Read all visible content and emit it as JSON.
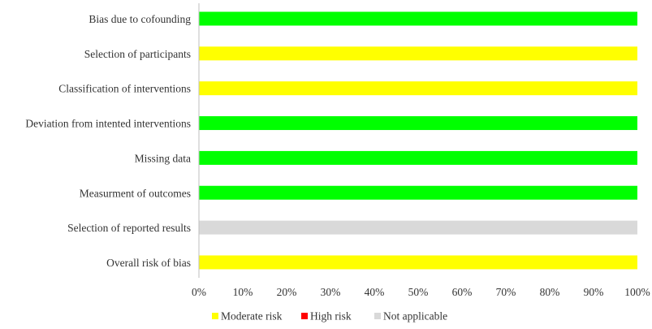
{
  "chart_data": {
    "type": "bar",
    "orientation": "horizontal",
    "stacked": true,
    "title": "",
    "xlabel": "",
    "ylabel": "",
    "xlim": [
      0,
      100
    ],
    "x_unit": "%",
    "grid": false,
    "legend_position": "bottom",
    "categories": [
      "Bias due to cofounding",
      "Selection of participants",
      "Classification of interventions",
      "Deviation from intented interventions",
      "Missing data",
      "Measurment of outcomes",
      "Selection of reported results",
      "Overall risk of bias"
    ],
    "x_ticks": [
      "0%",
      "10%",
      "20%",
      "30%",
      "40%",
      "50%",
      "60%",
      "70%",
      "80%",
      "90%",
      "100%"
    ],
    "tick_values": [
      0,
      10,
      20,
      30,
      40,
      50,
      60,
      70,
      80,
      90,
      100
    ],
    "series": [
      {
        "key": "low",
        "name": "",
        "color": "#00ff00",
        "values": [
          100,
          0,
          0,
          100,
          100,
          100,
          0,
          0
        ]
      },
      {
        "key": "moderate",
        "name": "Moderate risk",
        "color": "#ffff00",
        "values": [
          0,
          100,
          100,
          0,
          0,
          0,
          0,
          100
        ]
      },
      {
        "key": "high",
        "name": "High risk",
        "color": "#ff0000",
        "values": [
          0,
          0,
          0,
          0,
          0,
          0,
          0,
          0
        ]
      },
      {
        "key": "na",
        "name": "Not applicable",
        "color": "#d9d9d9",
        "values": [
          0,
          0,
          0,
          0,
          0,
          0,
          100,
          0
        ]
      }
    ],
    "legend": [
      {
        "name": "Moderate risk",
        "color": "#ffff00"
      },
      {
        "name": "High risk",
        "color": "#ff0000"
      },
      {
        "name": "Not applicable",
        "color": "#d9d9d9"
      }
    ]
  }
}
